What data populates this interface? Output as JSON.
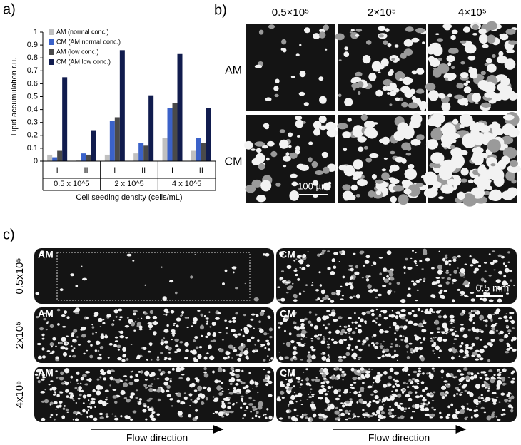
{
  "chart_data": {
    "type": "bar",
    "panel_label": "a)",
    "y_label": "Lipid accumulation r.u.",
    "x_label": "Cell seeding density (cells/mL)",
    "categories": [
      "I",
      "II",
      "I",
      "II",
      "I",
      "II"
    ],
    "groups": [
      "0.5 x 10^5",
      "2 x 10^5",
      "4 x 10^5"
    ],
    "series": [
      {
        "name": "AM (normal conc.)",
        "color": "#c0c0c0",
        "values": [
          0.05,
          0.01,
          0.05,
          0.06,
          0.18,
          0.08
        ]
      },
      {
        "name": "CM (AM normal conc.)",
        "color": "#3b62c9",
        "values": [
          0.03,
          0.06,
          0.31,
          0.14,
          0.41,
          0.18
        ]
      },
      {
        "name": "AM (low conc.)",
        "color": "#4a4a4a",
        "values": [
          0.08,
          0.05,
          0.34,
          0.12,
          0.45,
          0.14
        ]
      },
      {
        "name": "CM (AM low conc.)",
        "color": "#111c4e",
        "values": [
          0.65,
          0.24,
          0.86,
          0.51,
          0.83,
          0.41
        ]
      }
    ],
    "ylim": [
      0,
      1
    ],
    "yticks": [
      0,
      0.1,
      0.2,
      0.3,
      0.4,
      0.5,
      0.6,
      0.7,
      0.8,
      0.9,
      1
    ],
    "legend": "top-left"
  },
  "panel_b": {
    "label": "b)",
    "columns": [
      "0.5×10⁵",
      "2×10⁵",
      "4×10⁵"
    ],
    "rows": [
      "AM",
      "CM"
    ],
    "scale_bar": "100 µm"
  },
  "panel_c": {
    "label": "c)",
    "rows": [
      "0.5x10⁵",
      "2x10⁵",
      "4x10⁵"
    ],
    "columns": [
      "AM",
      "CM"
    ],
    "scale_bar": "0.5 mm",
    "arrow_labels": [
      "Flow direction",
      "Flow direction"
    ]
  }
}
